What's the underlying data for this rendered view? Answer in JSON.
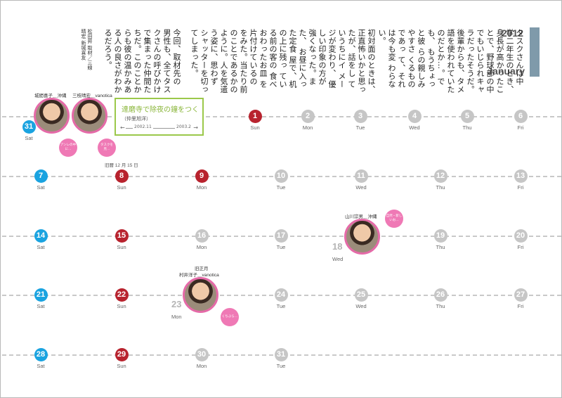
{
  "header": {
    "year": "2012",
    "month": "January"
  },
  "story": {
    "columns": [
      "タスクさんは中",
      "学二年生のとき、",
      "身長が高かったこ",
      "とで、野球部の中",
      "でもいじられキャ",
      "ラだったそうだ。",
      "後輩からも、タメ",
      "語を使われていた",
      "のだとか…。でも、",
      "もうちょっと彼",
      "らの親しみやすさ",
      "くるものであっ",
      "て、それは今も変",
      "わらない。"
    ],
    "columns2": [
      "初対面のときは、",
      "正直怖いかと思っ",
      "たが、話をし",
      "ていうちにイ",
      "メージが変わり、",
      "優しい印象の方が",
      "強くなった。また、",
      "お昼に入った定食",
      "屋で、机の上に残っ",
      "ている前の客の",
      "食べおわったお皿",
      "を片付けているの",
      "をみた。当たり前",
      "のことであるかの",
      "ように。人を気遣",
      "う姿に、思わず",
      "シャッターを切っ",
      "てしまった。"
    ],
    "columns3": [
      "今回、取材先の",
      "男性も、全てタス",
      "クさんの呼びかけ",
      "で集まった仲間た",
      "ちだ。このことか",
      "らも彼の温かみあ",
      "る人の良さがわか",
      "るだろう。"
    ],
    "credit": [
      "松田昇",
      "取材／三線晴宏",
      "新城喜友"
    ]
  },
  "event": {
    "title": "達磨寺で除夜の鐘をつく",
    "name": "（仲里旭洋）",
    "start": "2002.11",
    "end": "2003.2"
  },
  "photos": {
    "p1_name": "城間喜子＿沖縄",
    "p2_name": "三枝晴宏＿vanotica",
    "p3_name": "山川宗男＿沖縄",
    "p4_lunar": "旧正月",
    "p4_name": "村井洋子＿vanotica",
    "b1": "アンレの中に…",
    "b2": "タスクを見…",
    "b3": "自然・新しいお…",
    "b4": "くちぶら…"
  },
  "notes": {
    "lunar_8": "旧暦 12 月 15 日"
  },
  "days": {
    "r0": [
      {
        "n": "31",
        "d": "Sat"
      },
      {
        "n": "1",
        "d": "Sun"
      },
      {
        "n": "2",
        "d": "Mon"
      },
      {
        "n": "3",
        "d": "Tue"
      },
      {
        "n": "4",
        "d": "Wed"
      },
      {
        "n": "5",
        "d": "Thu"
      },
      {
        "n": "6",
        "d": "Fri"
      }
    ],
    "r1": [
      {
        "n": "7",
        "d": "Sat"
      },
      {
        "n": "8",
        "d": "Sun"
      },
      {
        "n": "9",
        "d": "Mon"
      },
      {
        "n": "10",
        "d": "Tue"
      },
      {
        "n": "11",
        "d": "Wed"
      },
      {
        "n": "12",
        "d": "Thu"
      },
      {
        "n": "13",
        "d": "Fri"
      }
    ],
    "r2": [
      {
        "n": "14",
        "d": "Sat"
      },
      {
        "n": "15",
        "d": "Sun"
      },
      {
        "n": "16",
        "d": "Mon"
      },
      {
        "n": "17",
        "d": "Tue"
      },
      {
        "n": "18",
        "d": "Wed"
      },
      {
        "n": "19",
        "d": "Thu"
      },
      {
        "n": "20",
        "d": "Fri"
      }
    ],
    "r3": [
      {
        "n": "21",
        "d": "Sat"
      },
      {
        "n": "22",
        "d": "Sun"
      },
      {
        "n": "23",
        "d": "Mon"
      },
      {
        "n": "24",
        "d": "Tue"
      },
      {
        "n": "25",
        "d": "Wed"
      },
      {
        "n": "26",
        "d": "Thu"
      },
      {
        "n": "27",
        "d": "Fri"
      }
    ],
    "r4": [
      {
        "n": "28",
        "d": "Sat"
      },
      {
        "n": "29",
        "d": "Sun"
      },
      {
        "n": "30",
        "d": "Mon"
      },
      {
        "n": "31",
        "d": "Tue"
      }
    ]
  },
  "colors": {
    "sat": "#1aa3e0",
    "sun": "#b8232e",
    "weekday": "#c6c6c6",
    "accent": "#7f9aaa",
    "event": "#9bc84a",
    "photo_ring": "#e56aa8"
  }
}
